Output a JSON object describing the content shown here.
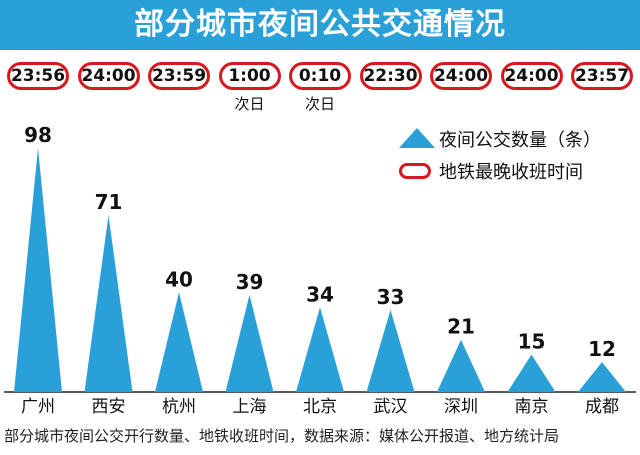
{
  "title": "部分城市夜间公共交通情况",
  "colors": {
    "accent": "#2aa0d8",
    "pill_border": "#d8181e"
  },
  "legend": {
    "bus_label": "夜间公交数量（条）",
    "subway_label": "地铁最晚收班时间"
  },
  "footer": "部分城市夜间公交开行数量、地铁收班时间，数据来源：媒体公开报道、地方统计局",
  "chart_data": {
    "type": "bar",
    "categories": [
      "广州",
      "西安",
      "杭州",
      "上海",
      "北京",
      "武汉",
      "深圳",
      "南京",
      "成都"
    ],
    "series": [
      {
        "name": "夜间公交数量（条）",
        "values": [
          98,
          71,
          40,
          39,
          34,
          33,
          21,
          15,
          12
        ]
      }
    ],
    "subway_last_times": [
      "23:56",
      "24:00",
      "23:59",
      "1:00",
      "0:10",
      "22:30",
      "24:00",
      "24:00",
      "23:57"
    ],
    "subway_time_notes": [
      "",
      "",
      "",
      "次日",
      "次日",
      "",
      "",
      "",
      ""
    ],
    "value_labels": [
      "98",
      "71",
      "40",
      "39",
      "34",
      "33",
      "21",
      "15",
      "12"
    ],
    "ylim": [
      0,
      100
    ],
    "grid": false,
    "legend_position": "top-right"
  }
}
